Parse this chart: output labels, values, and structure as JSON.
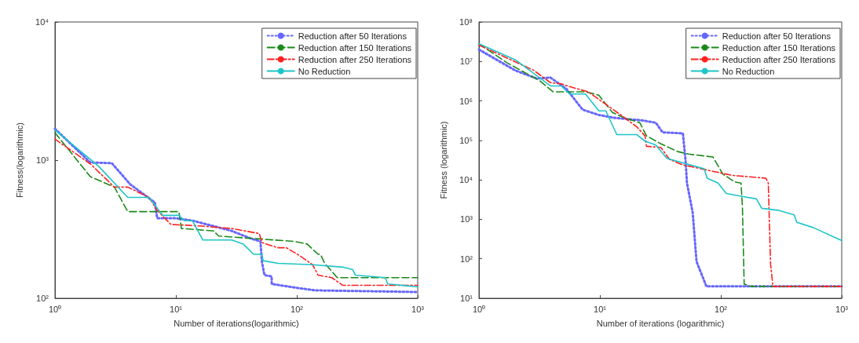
{
  "chart_data": [
    {
      "type": "line",
      "xlabel": "Number of iterations(logarithmic)",
      "ylabel": "Fitness(logarithmic)",
      "log": "xy",
      "grid": false,
      "legend": "top right",
      "marker": "none",
      "xlim": [
        1,
        1000
      ],
      "xticks": [
        {
          "value": 1,
          "label": "10⁰"
        },
        {
          "value": 10,
          "label": "10¹"
        },
        {
          "value": 100,
          "label": "10²"
        },
        {
          "value": 1000,
          "label": "10³"
        }
      ],
      "ylim": [
        100,
        10000
      ],
      "yticks": [
        {
          "value": 100,
          "label": "10²"
        },
        {
          "value": 1000,
          "label": "10³"
        },
        {
          "value": 10000,
          "label": "10⁴"
        }
      ],
      "series": [
        {
          "name": "Reduction after 50 Iterations",
          "color": "#6666ff",
          "line_style": "dotted",
          "x": [
            1,
            1.96,
            2.95,
            4.2,
            6.7,
            7,
            10,
            13.7,
            29,
            42,
            50,
            51.5,
            54,
            62,
            62,
            100,
            142,
            1000
          ],
          "values": [
            1685,
            962,
            950,
            667,
            493,
            380,
            380,
            365,
            307,
            270,
            258,
            183,
            147,
            144,
            127,
            119,
            114,
            111
          ]
        },
        {
          "name": "Reduction after 150 Iterations",
          "color": "#1a8a1a",
          "line_style": "dashed",
          "x": [
            1,
            1.96,
            3.1,
            4,
            10.6,
            11.1,
            20.5,
            22.6,
            46,
            95,
            122,
            150,
            157,
            170,
            216,
            1000
          ],
          "values": [
            1580,
            759,
            638,
            424,
            424,
            320,
            307,
            282,
            270,
            258,
            247,
            208,
            208,
            179,
            141,
            141
          ]
        },
        {
          "name": "Reduction after 250 Iterations",
          "color": "#ff2020",
          "line_style": "dashdot",
          "x": [
            1,
            1.96,
            3.1,
            4,
            6,
            7,
            9.1,
            15,
            29,
            49,
            51.5,
            70,
            82,
            105,
            135,
            150,
            195,
            240,
            1000
          ],
          "values": [
            1420,
            940,
            638,
            638,
            537,
            433,
            342,
            335,
            320,
            294,
            253,
            232,
            232,
            204,
            175,
            147,
            141,
            124,
            124
          ]
        },
        {
          "name": "No Reduction",
          "color": "#1ec4c8",
          "line_style": "solid",
          "x": [
            1,
            2.3,
            4,
            6,
            7.8,
            10.6,
            11.7,
            13.7,
            16.7,
            29,
            36,
            44,
            51.5,
            52.6,
            70,
            135,
            240,
            290,
            305,
            540,
            565,
            1000
          ],
          "values": [
            1650,
            902,
            537,
            537,
            398,
            398,
            365,
            365,
            264,
            264,
            247,
            208,
            208,
            187,
            179,
            175,
            168,
            161,
            147,
            141,
            127,
            121
          ]
        }
      ]
    },
    {
      "type": "line",
      "xlabel": "Number of iterations (logarithmic)",
      "ylabel": "Fitness (logarithmic)",
      "log": "xy",
      "grid": false,
      "legend": "top right",
      "marker": "none",
      "xlim": [
        1,
        1000
      ],
      "xticks": [
        {
          "value": 1,
          "label": "10⁰"
        },
        {
          "value": 10,
          "label": "10¹"
        },
        {
          "value": 100,
          "label": "10²"
        },
        {
          "value": 1000,
          "label": "10³"
        }
      ],
      "ylim": [
        10,
        100000000
      ],
      "yticks": [
        {
          "value": 10,
          "label": "10¹"
        },
        {
          "value": 100,
          "label": "10²"
        },
        {
          "value": 1000,
          "label": "10³"
        },
        {
          "value": 10000,
          "label": "10⁴"
        },
        {
          "value": 100000,
          "label": "10⁵"
        },
        {
          "value": 1000000,
          "label": "10⁶"
        },
        {
          "value": 10000000,
          "label": "10⁷"
        },
        {
          "value": 100000000,
          "label": "10⁸"
        }
      ],
      "series": [
        {
          "name": "Reduction after 50 Iterations",
          "color": "#6666ff",
          "line_style": "dotted",
          "x": [
            1,
            2,
            3,
            3.9,
            5.3,
            7.2,
            9.8,
            13.4,
            22.6,
            29,
            33,
            48.6,
            51,
            52.5,
            58.5,
            63,
            76,
            1000
          ],
          "values": [
            20000000,
            5900000,
            3700000,
            3900000,
            2000000,
            600000,
            440000,
            370000,
            320000,
            280000,
            160000,
            150000,
            33000,
            8300,
            1500,
            85,
            20,
            20
          ]
        },
        {
          "name": "Reduction after 150 Iterations",
          "color": "#1a8a1a",
          "line_style": "dashed",
          "x": [
            1,
            1.7,
            3.2,
            4.1,
            7.6,
            9.8,
            12.7,
            16,
            21.4,
            24.3,
            32,
            44,
            54,
            86,
            104,
            130,
            147,
            151,
            156,
            177,
            1000
          ],
          "values": [
            28000000,
            9300000,
            3200000,
            1700000,
            1700000,
            1400000,
            510000,
            370000,
            280000,
            130000,
            82000,
            52000,
            45000,
            38000,
            14000,
            8900,
            8300,
            2000,
            23,
            20,
            20
          ]
        },
        {
          "name": "Reduction after 250 Iterations",
          "color": "#ff2020",
          "line_style": "dashdot",
          "x": [
            1,
            2.3,
            2.85,
            3.9,
            4.8,
            5.9,
            8,
            10.9,
            14.9,
            20.2,
            23.6,
            24.3,
            32,
            37.6,
            48.6,
            86,
            124,
            236,
            247,
            258,
            270,
            1000
          ],
          "values": [
            26000000,
            8000000,
            5900000,
            2900000,
            2700000,
            2200000,
            1700000,
            870000,
            440000,
            220000,
            130000,
            71000,
            66000,
            33000,
            24000,
            16500,
            13000,
            11000,
            8300,
            72,
            20,
            20
          ]
        },
        {
          "name": "No Reduction",
          "color": "#1ec4c8",
          "line_style": "solid",
          "x": [
            1,
            2,
            3.9,
            4.8,
            5.6,
            7.6,
            9.8,
            11.2,
            13.8,
            20.2,
            23.6,
            29,
            35.8,
            73,
            77,
            95,
            111,
            144,
            197,
            218,
            297,
            404,
            425,
            580,
            1000
          ],
          "values": [
            28000000,
            11000000,
            2400000,
            2400000,
            1500000,
            1500000,
            560000,
            560000,
            140000,
            140000,
            96000,
            76000,
            35000,
            19000,
            11000,
            8300,
            4500,
            3900,
            3300,
            1900,
            1700,
            1300,
            840,
            620,
            290
          ]
        }
      ]
    }
  ]
}
